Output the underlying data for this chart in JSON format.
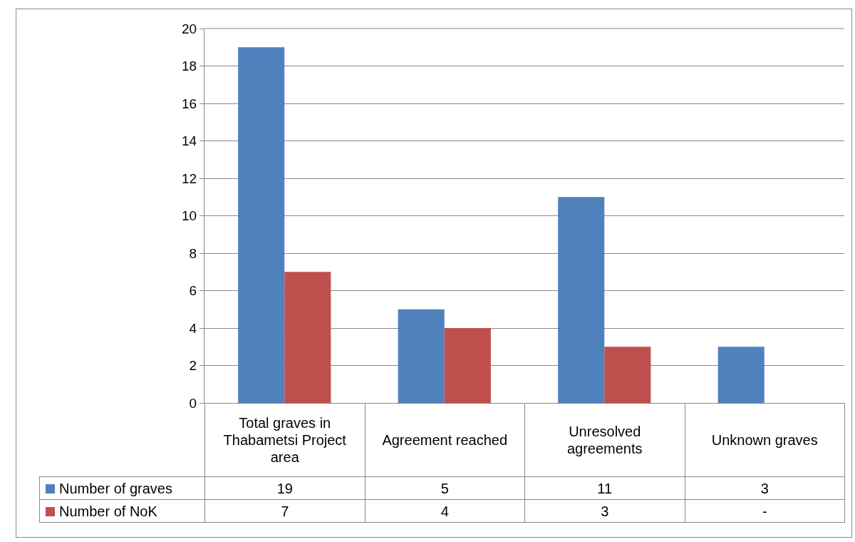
{
  "chart_data": {
    "type": "bar",
    "categories": [
      "Total graves in Thabametsi Project area",
      "Agreement reached",
      "Unresolved agreements",
      "Unknown graves"
    ],
    "series": [
      {
        "name": "Number of graves",
        "color": "#4f81bd",
        "values": [
          19,
          5,
          11,
          3
        ],
        "value_labels": [
          "19",
          "5",
          "11",
          "3"
        ]
      },
      {
        "name": "Number of NoK",
        "color": "#c0504d",
        "values": [
          7,
          4,
          3,
          null
        ],
        "value_labels": [
          "7",
          "4",
          "3",
          "-"
        ]
      }
    ],
    "ylim": [
      0,
      20
    ],
    "yticks": [
      0,
      2,
      4,
      6,
      8,
      10,
      12,
      14,
      16,
      18,
      20
    ],
    "grid": "y",
    "legend": "bottom left"
  }
}
